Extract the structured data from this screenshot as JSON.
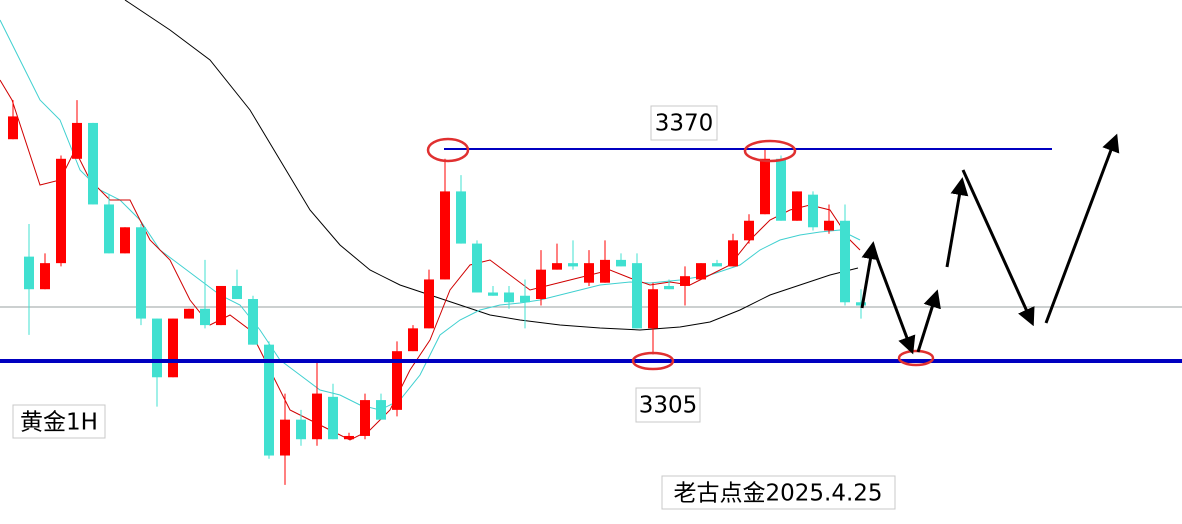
{
  "chart_data": {
    "type": "candlestick",
    "open": [
      3373,
      3337,
      3327,
      3335,
      3367,
      3378,
      3353,
      3338,
      3346,
      3318,
      3300,
      3318,
      3321,
      3316,
      3328,
      3324,
      3310,
      3276,
      3287,
      3281,
      3294,
      3281,
      3282,
      3293,
      3290,
      3308,
      3315,
      3330,
      3357,
      3341,
      3326,
      3326,
      3325,
      3324,
      3333,
      3335,
      3329,
      3329,
      3336,
      3335,
      3315,
      3328,
      3328,
      3330,
      3335,
      3334,
      3342,
      3350,
      3367,
      3348,
      3356,
      3345,
      3348,
      3323
    ],
    "high": [
      3385,
      3347,
      3338,
      3368,
      3385,
      3378,
      3356,
      3346,
      3347,
      3318,
      3318,
      3321,
      3336,
      3328,
      3333,
      3325,
      3311,
      3295,
      3290,
      3305,
      3298,
      3283,
      3295,
      3295,
      3311,
      3316,
      3333,
      3367,
      3362,
      3342,
      3328,
      3328,
      3330,
      3339,
      3341,
      3342,
      3339,
      3342,
      3338,
      3338,
      3329,
      3330,
      3334,
      3335,
      3336,
      3344,
      3350,
      3370,
      3368,
      3357,
      3357,
      3353,
      3353,
      3327
    ],
    "low": [
      3373,
      3313,
      3327,
      3334,
      3367,
      3353,
      3338,
      3338,
      3316,
      3291,
      3300,
      3318,
      3315,
      3316,
      3324,
      3310,
      3275,
      3267,
      3279,
      3279,
      3281,
      3281,
      3281,
      3287,
      3288,
      3308,
      3315,
      3330,
      3341,
      3326,
      3325,
      3321,
      3315,
      3322,
      3333,
      3333,
      3328,
      3329,
      3334,
      3315,
      3307,
      3327,
      3322,
      3330,
      3334,
      3334,
      3341,
      3350,
      3348,
      3348,
      3345,
      3344,
      3322,
      3318
    ],
    "close": [
      3380,
      3327,
      3335,
      3367,
      3378,
      3353,
      3338,
      3346,
      3318,
      3300,
      3318,
      3321,
      3316,
      3328,
      3324,
      3310,
      3276,
      3287,
      3281,
      3295,
      3281,
      3282,
      3293,
      3287,
      3308,
      3315,
      3330,
      3357,
      3341,
      3326,
      3325,
      3323,
      3323,
      3333,
      3335,
      3334,
      3335,
      3336,
      3334,
      3315,
      3327,
      3327,
      3331,
      3335,
      3334,
      3342,
      3348,
      3367,
      3348,
      3357,
      3346,
      3348,
      3323,
      3322
    ],
    "up_color": "#ff0000",
    "down_color": "#40e0d0",
    "ylim": [
      3255,
      3415.7
    ],
    "levels": [
      3370,
      3305
    ],
    "level_color": "#0000c0",
    "label": "黄金1H",
    "watermark": "老古点金2025.4.25"
  }
}
